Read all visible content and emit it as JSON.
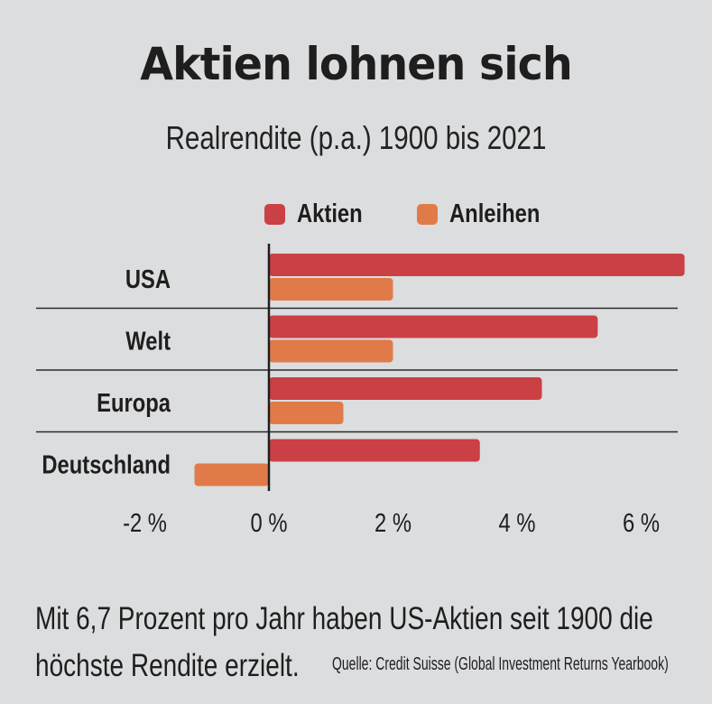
{
  "chart_data": {
    "type": "bar",
    "orientation": "horizontal",
    "title": "Aktien lohnen sich",
    "subtitle": "Realrendite (p.a.) 1900 bis 2021",
    "categories": [
      "USA",
      "Welt",
      "Europa",
      "Deutschland"
    ],
    "series": [
      {
        "name": "Aktien",
        "color": "#cb4045",
        "values": [
          6.7,
          5.3,
          4.4,
          3.4
        ]
      },
      {
        "name": "Anleihen",
        "color": "#e07b49",
        "values": [
          2.0,
          2.0,
          1.2,
          -1.2
        ]
      }
    ],
    "xlim": [
      -2,
      6.7
    ],
    "xticks": [
      -2,
      0,
      2,
      4,
      6
    ],
    "xtick_labels": [
      "-2 %",
      "0 %",
      "2 %",
      "4 %",
      "6 %"
    ],
    "xlabel": "",
    "ylabel": "",
    "grid": false,
    "legend_position": "top"
  },
  "footer": {
    "line1": "Mit 6,7 Prozent pro Jahr haben US-Aktien seit 1900 die",
    "line2": "höchste Rendite erzielt.",
    "source": "Quelle: Credit Suisse (Global Investment Returns Yearbook)"
  },
  "colors": {
    "background": "#dcdddf",
    "text": "#1e1e1e",
    "axis": "#1e1e1e"
  }
}
